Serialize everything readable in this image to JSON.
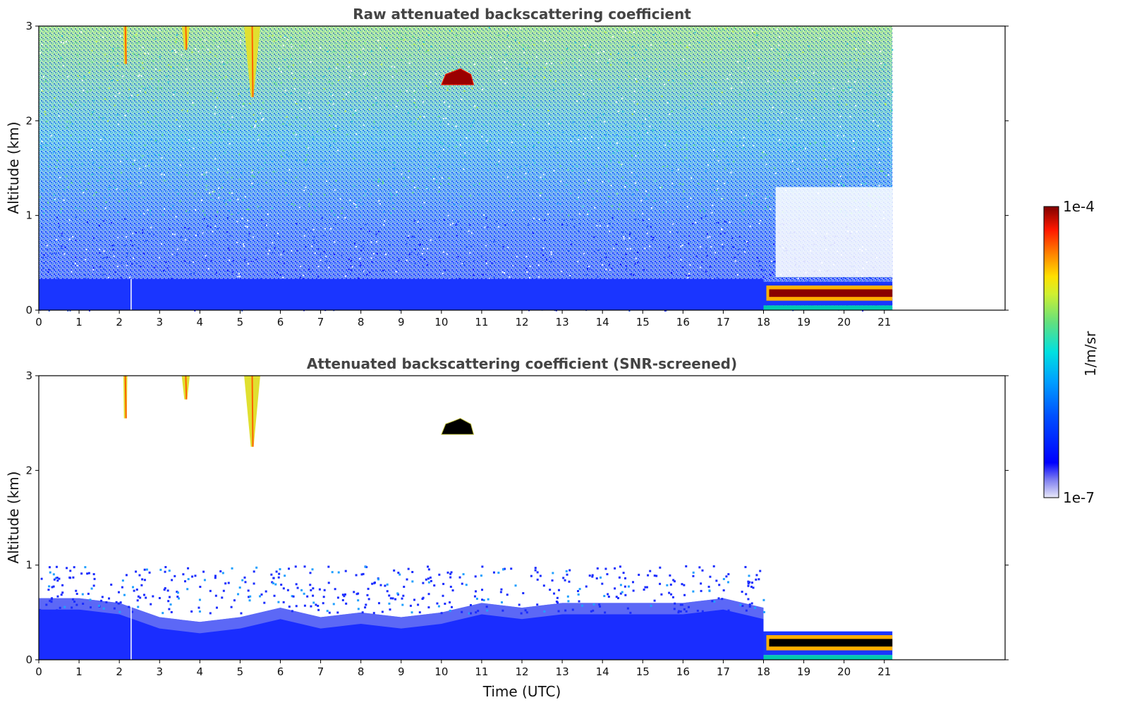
{
  "chart_data": [
    {
      "type": "heatmap",
      "title": "Raw attenuated backscattering coefficient",
      "xlabel": "",
      "ylabel": "Altitude (km)",
      "xlim": [
        0,
        24
      ],
      "ylim": [
        0,
        3
      ],
      "xticks": [
        "0",
        "1",
        "2",
        "3",
        "4",
        "5",
        "6",
        "7",
        "8",
        "9",
        "10",
        "11",
        "12",
        "13",
        "14",
        "15",
        "16",
        "17",
        "18",
        "19",
        "20",
        "21"
      ],
      "yticks": [
        "0",
        "1",
        "2",
        "3"
      ],
      "data_end_hour": 21.2,
      "features": [
        {
          "kind": "boundary_layer",
          "x": [
            0,
            18
          ],
          "top": 0.33,
          "note": "dense blue aerosol layer"
        },
        {
          "kind": "fog_layer",
          "x": [
            18,
            21.2
          ],
          "bottom": 0.05,
          "top": 0.3
        },
        {
          "kind": "cloud",
          "x": [
            10.0,
            10.8
          ],
          "bottom": 2.38,
          "top": 2.55
        },
        {
          "kind": "virga",
          "x": [
            2.1,
            2.2
          ],
          "bottom": 2.6,
          "top": 3.0
        },
        {
          "kind": "virga",
          "x": [
            3.55,
            3.75
          ],
          "bottom": 2.75,
          "top": 3.0
        },
        {
          "kind": "virga",
          "x": [
            5.1,
            5.5
          ],
          "bottom": 2.25,
          "top": 3.0
        }
      ]
    },
    {
      "type": "heatmap",
      "title": "Attenuated backscattering coefficient (SNR-screened)",
      "xlabel": "Time (UTC)",
      "ylabel": "Altitude (km)",
      "xlim": [
        0,
        24
      ],
      "ylim": [
        0,
        3
      ],
      "xticks": [
        "0",
        "1",
        "2",
        "3",
        "4",
        "5",
        "6",
        "7",
        "8",
        "9",
        "10",
        "11",
        "12",
        "13",
        "14",
        "15",
        "16",
        "17",
        "18",
        "19",
        "20",
        "21"
      ],
      "yticks": [
        "0",
        "1",
        "2",
        "3"
      ],
      "data_end_hour": 21.2,
      "boundary_layer_top": [
        [
          0,
          0.65
        ],
        [
          1,
          0.65
        ],
        [
          2,
          0.6
        ],
        [
          3,
          0.45
        ],
        [
          4,
          0.4
        ],
        [
          5,
          0.45
        ],
        [
          6,
          0.55
        ],
        [
          7,
          0.45
        ],
        [
          8,
          0.5
        ],
        [
          9,
          0.45
        ],
        [
          10,
          0.5
        ],
        [
          11,
          0.6
        ],
        [
          12,
          0.55
        ],
        [
          13,
          0.6
        ],
        [
          14,
          0.6
        ],
        [
          15,
          0.6
        ],
        [
          16,
          0.6
        ],
        [
          17,
          0.65
        ],
        [
          18,
          0.55
        ]
      ],
      "features": [
        {
          "kind": "fog_layer",
          "x": [
            18,
            21.2
          ],
          "bottom": 0.05,
          "top": 0.3
        },
        {
          "kind": "cloud",
          "x": [
            10.0,
            10.8
          ],
          "bottom": 2.38,
          "top": 2.55
        },
        {
          "kind": "virga",
          "x": [
            2.1,
            2.2
          ],
          "bottom": 2.55,
          "top": 3.0
        },
        {
          "kind": "virga",
          "x": [
            3.55,
            3.75
          ],
          "bottom": 2.75,
          "top": 3.0
        },
        {
          "kind": "virga",
          "x": [
            5.1,
            5.5
          ],
          "bottom": 2.25,
          "top": 3.0
        }
      ]
    }
  ],
  "colorbar": {
    "label": "1/m/sr",
    "max_label": "1e-4",
    "min_label": "1e-7",
    "scale": "log",
    "colormap": "jet",
    "colors": [
      "#e8e8f8",
      "#1010ff",
      "#0055ff",
      "#00a0ff",
      "#00e0e0",
      "#40e080",
      "#c0f040",
      "#ffe000",
      "#ff8000",
      "#ff2000",
      "#a00000",
      "#800000"
    ]
  }
}
